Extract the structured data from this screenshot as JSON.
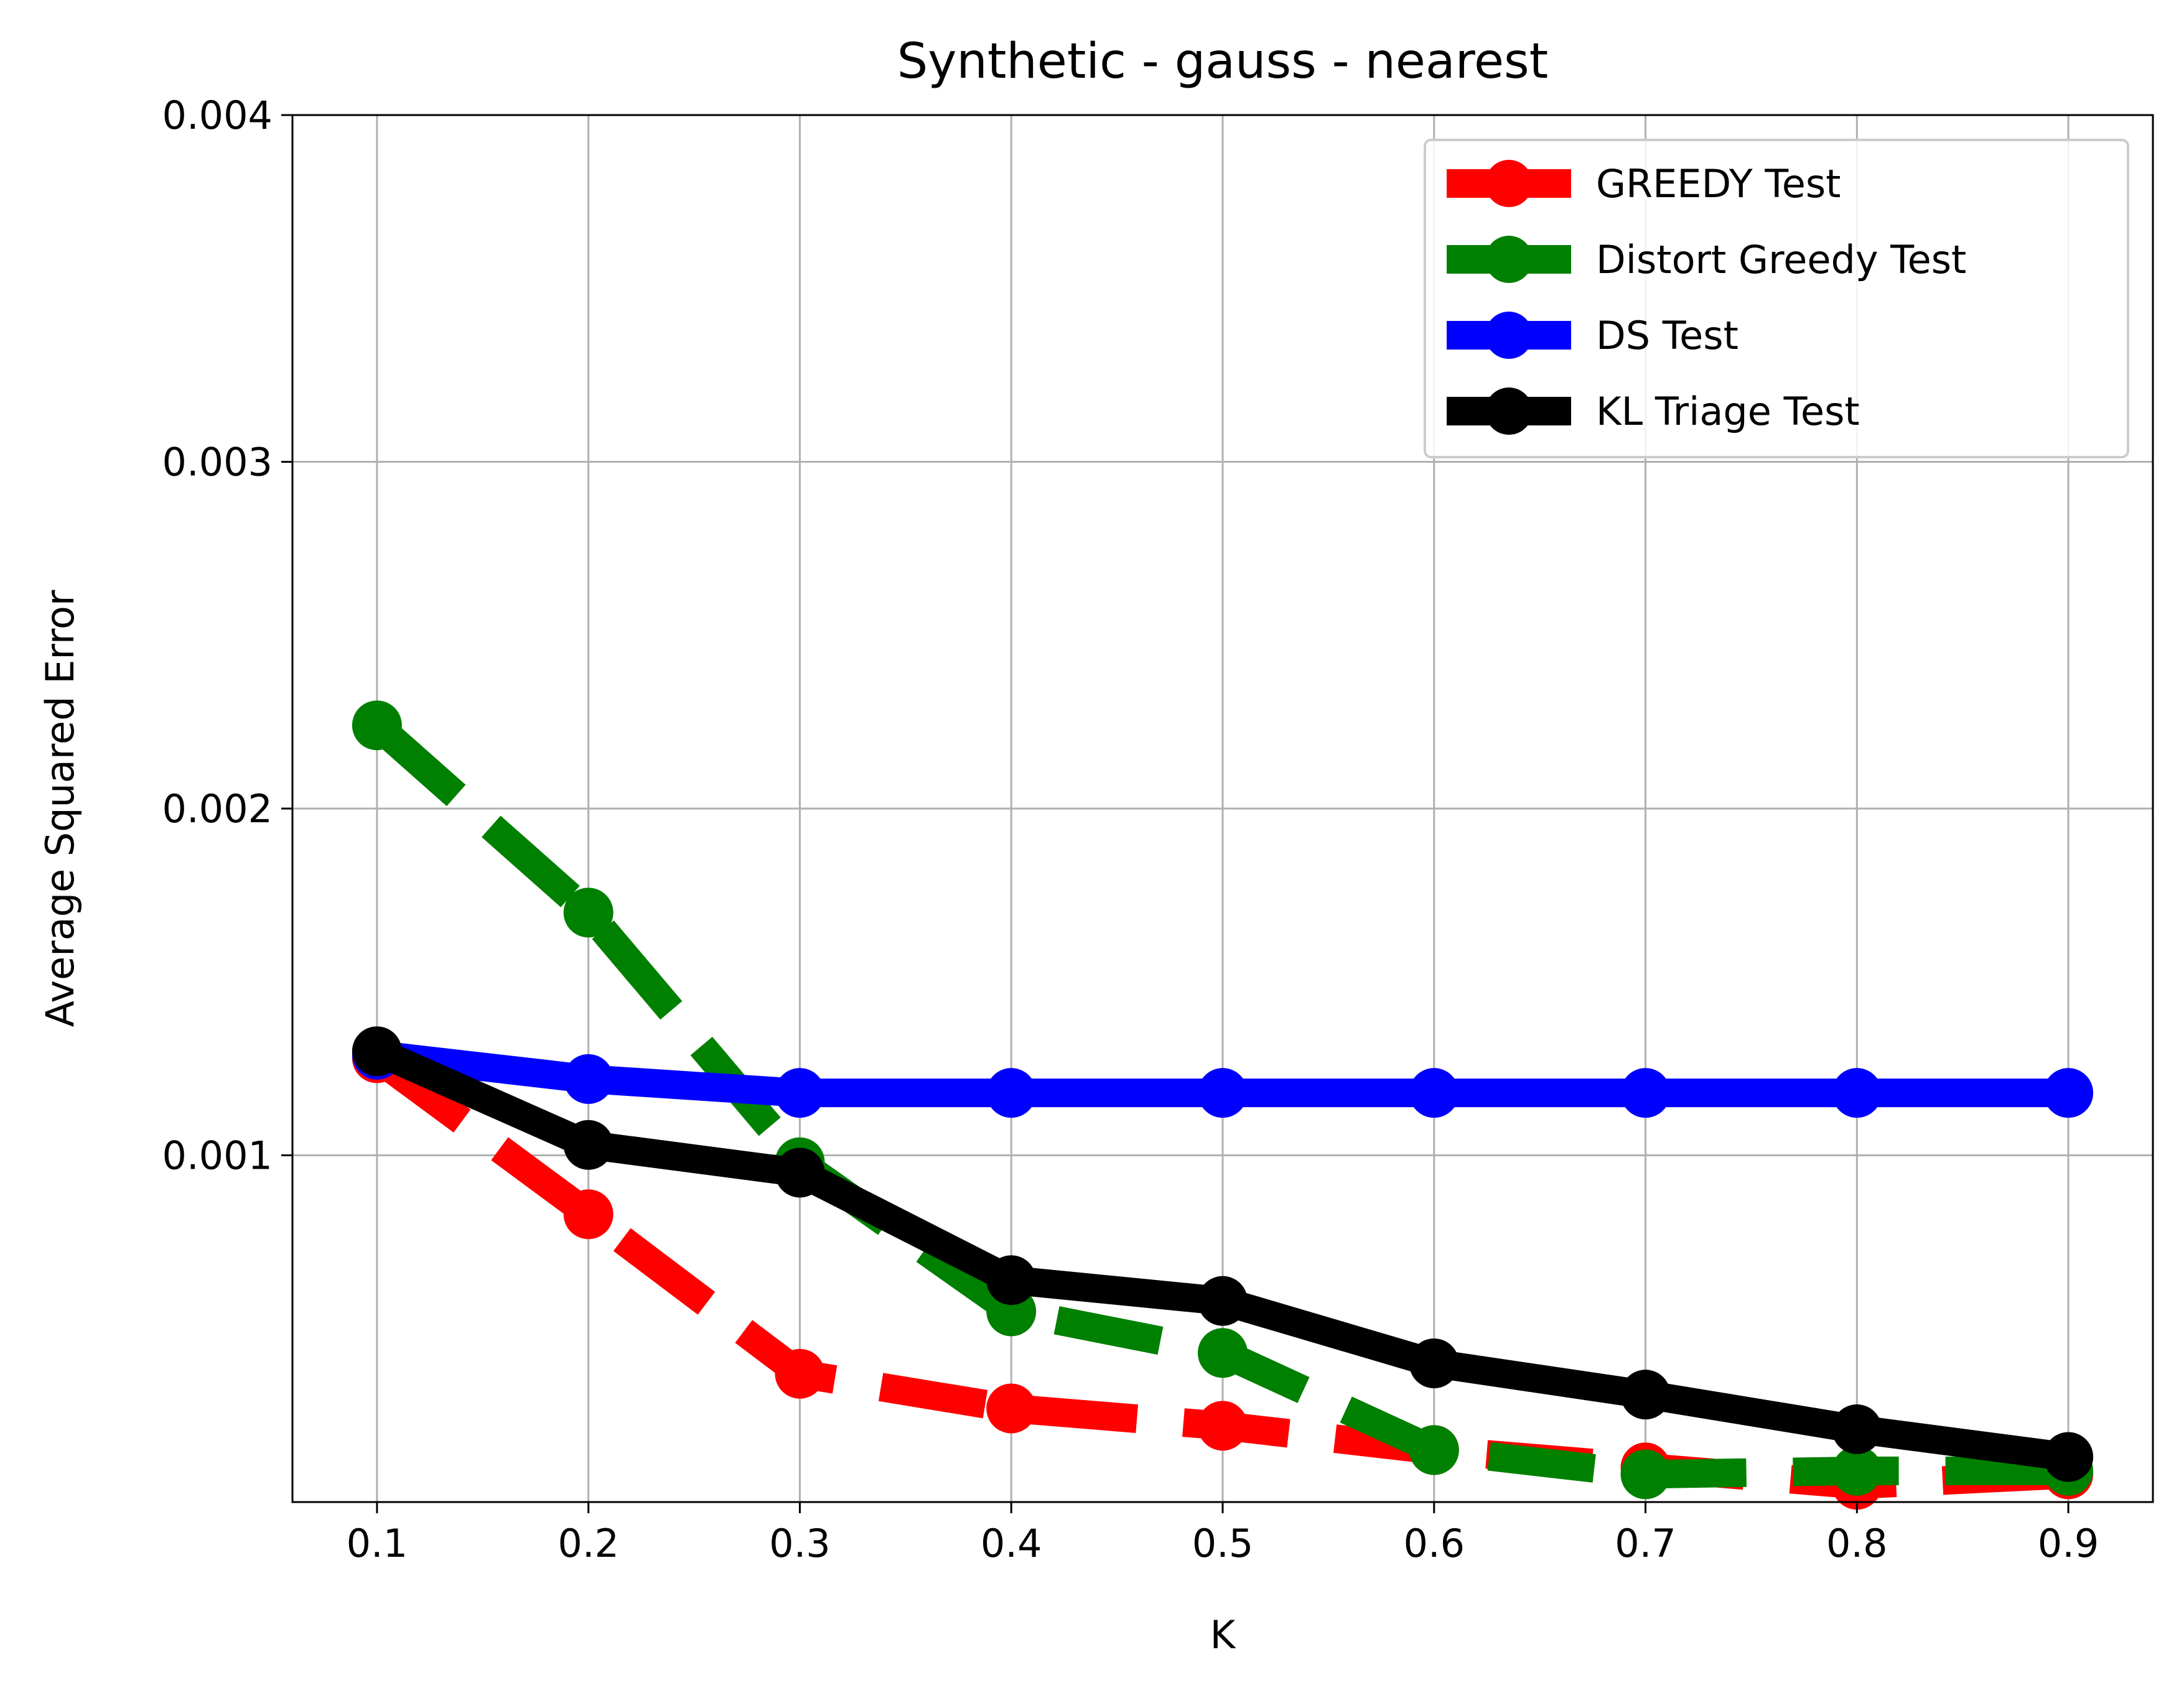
{
  "chart_data": {
    "type": "line",
    "title": "Synthetic - gauss - nearest",
    "xlabel": "K",
    "ylabel": "Average Squared Error",
    "x": [
      0.1,
      0.2,
      0.3,
      0.4,
      0.5,
      0.6,
      0.7,
      0.8,
      0.9
    ],
    "x_ticks": [
      "0.1",
      "0.2",
      "0.3",
      "0.4",
      "0.5",
      "0.6",
      "0.7",
      "0.8",
      "0.9"
    ],
    "xlim": [
      0.06,
      0.94
    ],
    "ylim": [
      0.0,
      0.004
    ],
    "y_ticks": [
      0.001,
      0.002,
      0.003,
      0.004
    ],
    "y_tick_labels": [
      "0.001",
      "0.002",
      "0.003",
      "0.004"
    ],
    "grid": true,
    "legend_position": "top-right",
    "series": [
      {
        "name": "GREEDY Test",
        "color": "#ff0000",
        "style": "dashed",
        "values": [
          0.00128,
          0.00083,
          0.00037,
          0.00027,
          0.00022,
          0.00015,
          0.0001,
          5e-05,
          8e-05
        ]
      },
      {
        "name": "Distort Greedy Test",
        "color": "#008000",
        "style": "dashed",
        "values": [
          0.00224,
          0.0017,
          0.00098,
          0.00055,
          0.00043,
          0.00015,
          8e-05,
          9e-05,
          9e-05
        ]
      },
      {
        "name": "DS Test",
        "color": "#0000ff",
        "style": "solid",
        "values": [
          0.00129,
          0.00122,
          0.00118,
          0.00118,
          0.00118,
          0.00118,
          0.00118,
          0.00118,
          0.00118
        ]
      },
      {
        "name": "KL Triage Test",
        "color": "#000000",
        "style": "solid",
        "values": [
          0.0013,
          0.00103,
          0.00095,
          0.00064,
          0.00058,
          0.0004,
          0.00031,
          0.00021,
          0.00013
        ]
      }
    ]
  }
}
